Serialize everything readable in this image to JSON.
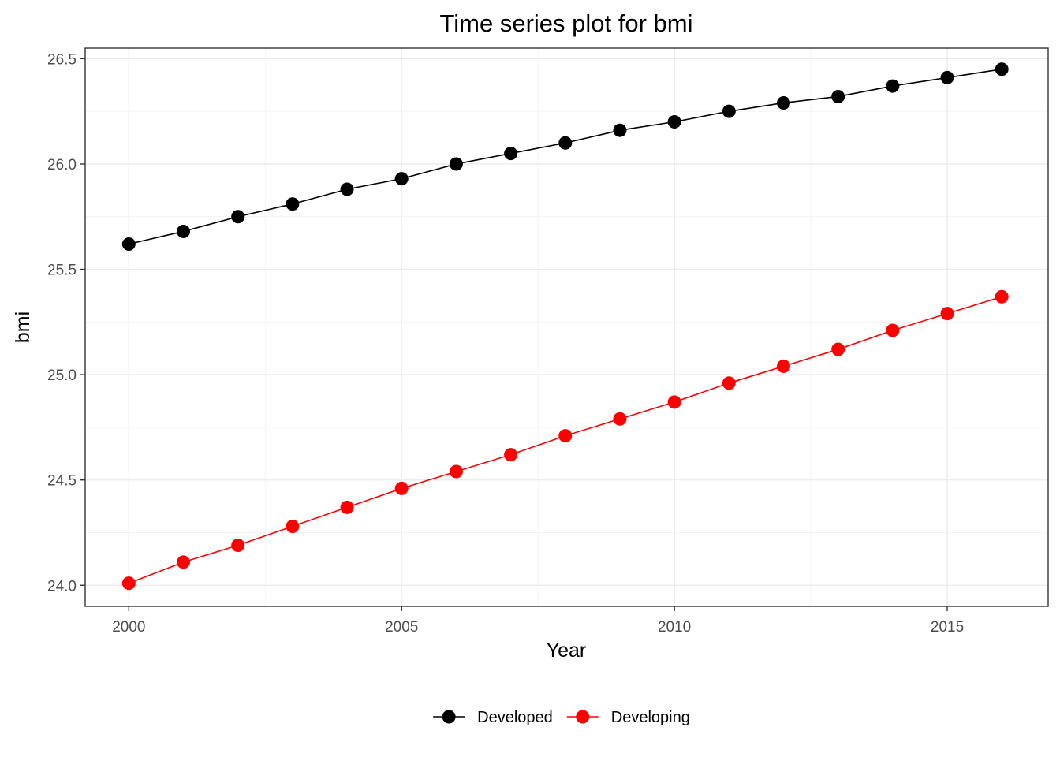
{
  "chart_data": {
    "type": "line",
    "title": "Time series plot for bmi",
    "xlabel": "Year",
    "ylabel": "bmi",
    "x": [
      2000,
      2001,
      2002,
      2003,
      2004,
      2005,
      2006,
      2007,
      2008,
      2009,
      2010,
      2011,
      2012,
      2013,
      2014,
      2015,
      2016
    ],
    "xlim": [
      1999.2,
      2016.85
    ],
    "ylim": [
      23.9,
      26.55
    ],
    "x_ticks": [
      2000,
      2005,
      2010,
      2015
    ],
    "x_tick_labels": [
      "2000",
      "2005",
      "2010",
      "2015"
    ],
    "y_ticks": [
      24.0,
      24.5,
      25.0,
      25.5,
      26.0,
      26.5
    ],
    "y_tick_labels": [
      "24.0",
      "24.5",
      "25.0",
      "25.5",
      "26.0",
      "26.5"
    ],
    "grid": true,
    "legend_position": "bottom",
    "series": [
      {
        "name": "Developed",
        "color": "#000000",
        "values": [
          25.62,
          25.68,
          25.75,
          25.81,
          25.88,
          25.93,
          26.0,
          26.05,
          26.1,
          26.16,
          26.2,
          26.25,
          26.29,
          26.32,
          26.37,
          26.41,
          26.45
        ]
      },
      {
        "name": "Developing",
        "color": "#ff0000",
        "values": [
          24.01,
          24.11,
          24.19,
          24.28,
          24.37,
          24.46,
          24.54,
          24.62,
          24.71,
          24.79,
          24.87,
          24.96,
          25.04,
          25.12,
          25.21,
          25.29,
          25.37
        ]
      }
    ]
  }
}
